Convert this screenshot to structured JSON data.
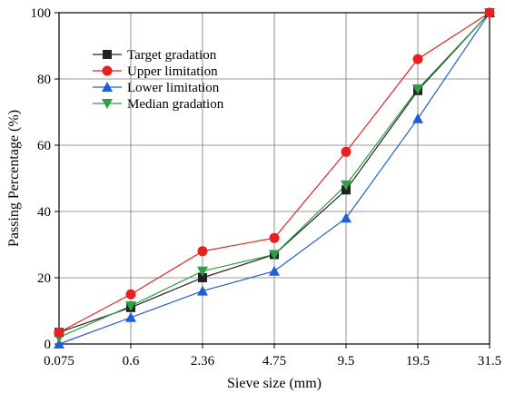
{
  "chart_data": {
    "type": "line",
    "xlabel": "Sieve size (mm)",
    "ylabel": "Passing Percentage (%)",
    "categories": [
      "0.075",
      "0.6",
      "2.36",
      "4.75",
      "9.5",
      "19.5",
      "31.5"
    ],
    "ylim": [
      0,
      100
    ],
    "yticks": [
      0,
      20,
      40,
      60,
      80,
      100
    ],
    "grid": true,
    "legend_position": "top-left",
    "series": [
      {
        "name": "Target gradation",
        "color": "#222222",
        "marker": "square",
        "values": [
          3.5,
          11,
          20,
          27,
          46.5,
          76.5,
          100
        ]
      },
      {
        "name": "Upper limitation",
        "color": "#e8201e",
        "marker": "circle",
        "values": [
          3.5,
          15,
          28,
          32,
          58,
          86,
          100
        ]
      },
      {
        "name": "Lower limitation",
        "color": "#1f5fd6",
        "marker": "triangle-up",
        "values": [
          0,
          8,
          16,
          22,
          38,
          68,
          100
        ]
      },
      {
        "name": "Median gradation",
        "color": "#2ea043",
        "marker": "triangle-down",
        "values": [
          2,
          11.5,
          22,
          27,
          48,
          77,
          100
        ]
      }
    ]
  }
}
